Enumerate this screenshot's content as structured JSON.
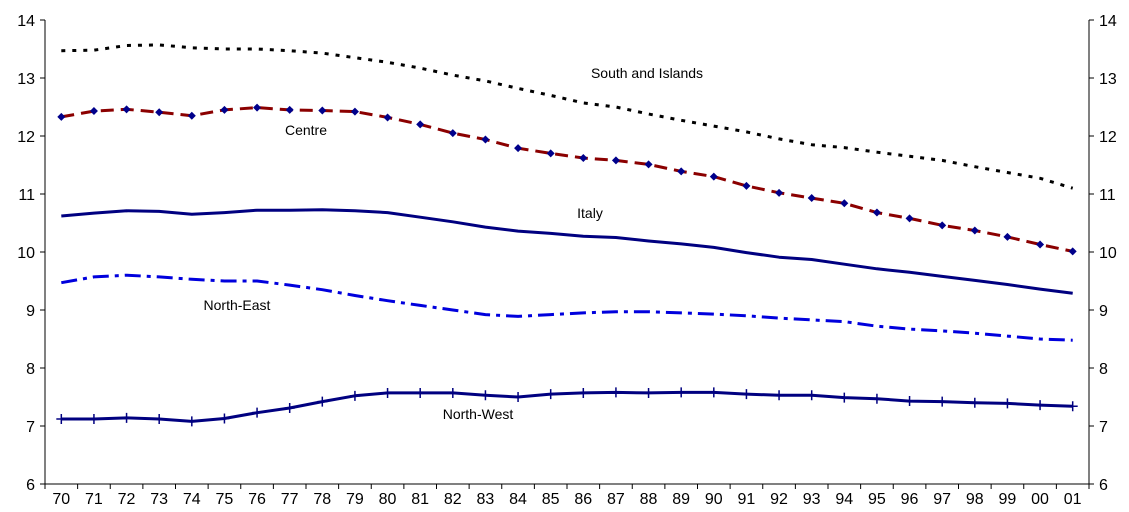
{
  "chart_data": {
    "type": "line",
    "title": "",
    "xlabel": "",
    "ylabel": "",
    "categories": [
      "70",
      "71",
      "72",
      "73",
      "74",
      "75",
      "76",
      "77",
      "78",
      "79",
      "80",
      "81",
      "82",
      "83",
      "84",
      "85",
      "86",
      "87",
      "88",
      "89",
      "90",
      "91",
      "92",
      "93",
      "94",
      "95",
      "96",
      "97",
      "98",
      "99",
      "00",
      "01"
    ],
    "ylim": [
      6,
      14
    ],
    "yticks": [
      6,
      7,
      8,
      9,
      10,
      11,
      12,
      13,
      14
    ],
    "grid": false,
    "series": [
      {
        "name": "South and Islands",
        "color": "#000000",
        "style": "dotted",
        "marker": "none",
        "values": [
          13.47,
          13.48,
          13.56,
          13.57,
          13.52,
          13.5,
          13.5,
          13.47,
          13.43,
          13.35,
          13.27,
          13.17,
          13.05,
          12.95,
          12.82,
          12.7,
          12.57,
          12.5,
          12.38,
          12.27,
          12.17,
          12.07,
          11.95,
          11.85,
          11.8,
          11.72,
          11.65,
          11.58,
          11.47,
          11.37,
          11.27,
          11.1
        ]
      },
      {
        "name": "Centre",
        "color": "#8b0000",
        "marker_color": "#00008b",
        "style": "dashed",
        "marker": "diamond",
        "values": [
          12.33,
          12.43,
          12.46,
          12.41,
          12.35,
          12.45,
          12.49,
          12.45,
          12.44,
          12.42,
          12.32,
          12.2,
          12.05,
          11.94,
          11.79,
          11.7,
          11.62,
          11.58,
          11.51,
          11.39,
          11.3,
          11.14,
          11.02,
          10.93,
          10.84,
          10.68,
          10.58,
          10.46,
          10.37,
          10.26,
          10.13,
          10.01
        ]
      },
      {
        "name": "Italy",
        "color": "#000080",
        "style": "solid",
        "marker": "none",
        "values": [
          10.62,
          10.67,
          10.71,
          10.7,
          10.65,
          10.68,
          10.72,
          10.72,
          10.73,
          10.71,
          10.68,
          10.6,
          10.52,
          10.43,
          10.36,
          10.32,
          10.27,
          10.25,
          10.19,
          10.14,
          10.08,
          9.99,
          9.91,
          9.87,
          9.79,
          9.71,
          9.65,
          9.58,
          9.51,
          9.44,
          9.36,
          9.29
        ]
      },
      {
        "name": "North-East",
        "color": "#0000dd",
        "style": "dashdot",
        "marker": "none",
        "values": [
          9.47,
          9.57,
          9.6,
          9.57,
          9.53,
          9.5,
          9.5,
          9.43,
          9.35,
          9.25,
          9.16,
          9.08,
          9.0,
          8.92,
          8.89,
          8.92,
          8.95,
          8.97,
          8.97,
          8.95,
          8.93,
          8.9,
          8.86,
          8.83,
          8.8,
          8.72,
          8.67,
          8.64,
          8.6,
          8.55,
          8.5,
          8.48
        ]
      },
      {
        "name": "North-West",
        "color": "#000080",
        "style": "solid",
        "marker": "plus",
        "values": [
          7.12,
          7.12,
          7.14,
          7.12,
          7.08,
          7.13,
          7.23,
          7.31,
          7.42,
          7.52,
          7.57,
          7.57,
          7.57,
          7.53,
          7.5,
          7.55,
          7.57,
          7.58,
          7.57,
          7.58,
          7.58,
          7.55,
          7.53,
          7.53,
          7.49,
          7.47,
          7.43,
          7.42,
          7.4,
          7.39,
          7.36,
          7.34
        ]
      }
    ],
    "annotations": [
      {
        "text": "South and Islands",
        "series": 0
      },
      {
        "text": "Centre",
        "series": 1
      },
      {
        "text": "Italy",
        "series": 2
      },
      {
        "text": "North-East",
        "series": 3
      },
      {
        "text": "North-West",
        "series": 4
      }
    ]
  }
}
